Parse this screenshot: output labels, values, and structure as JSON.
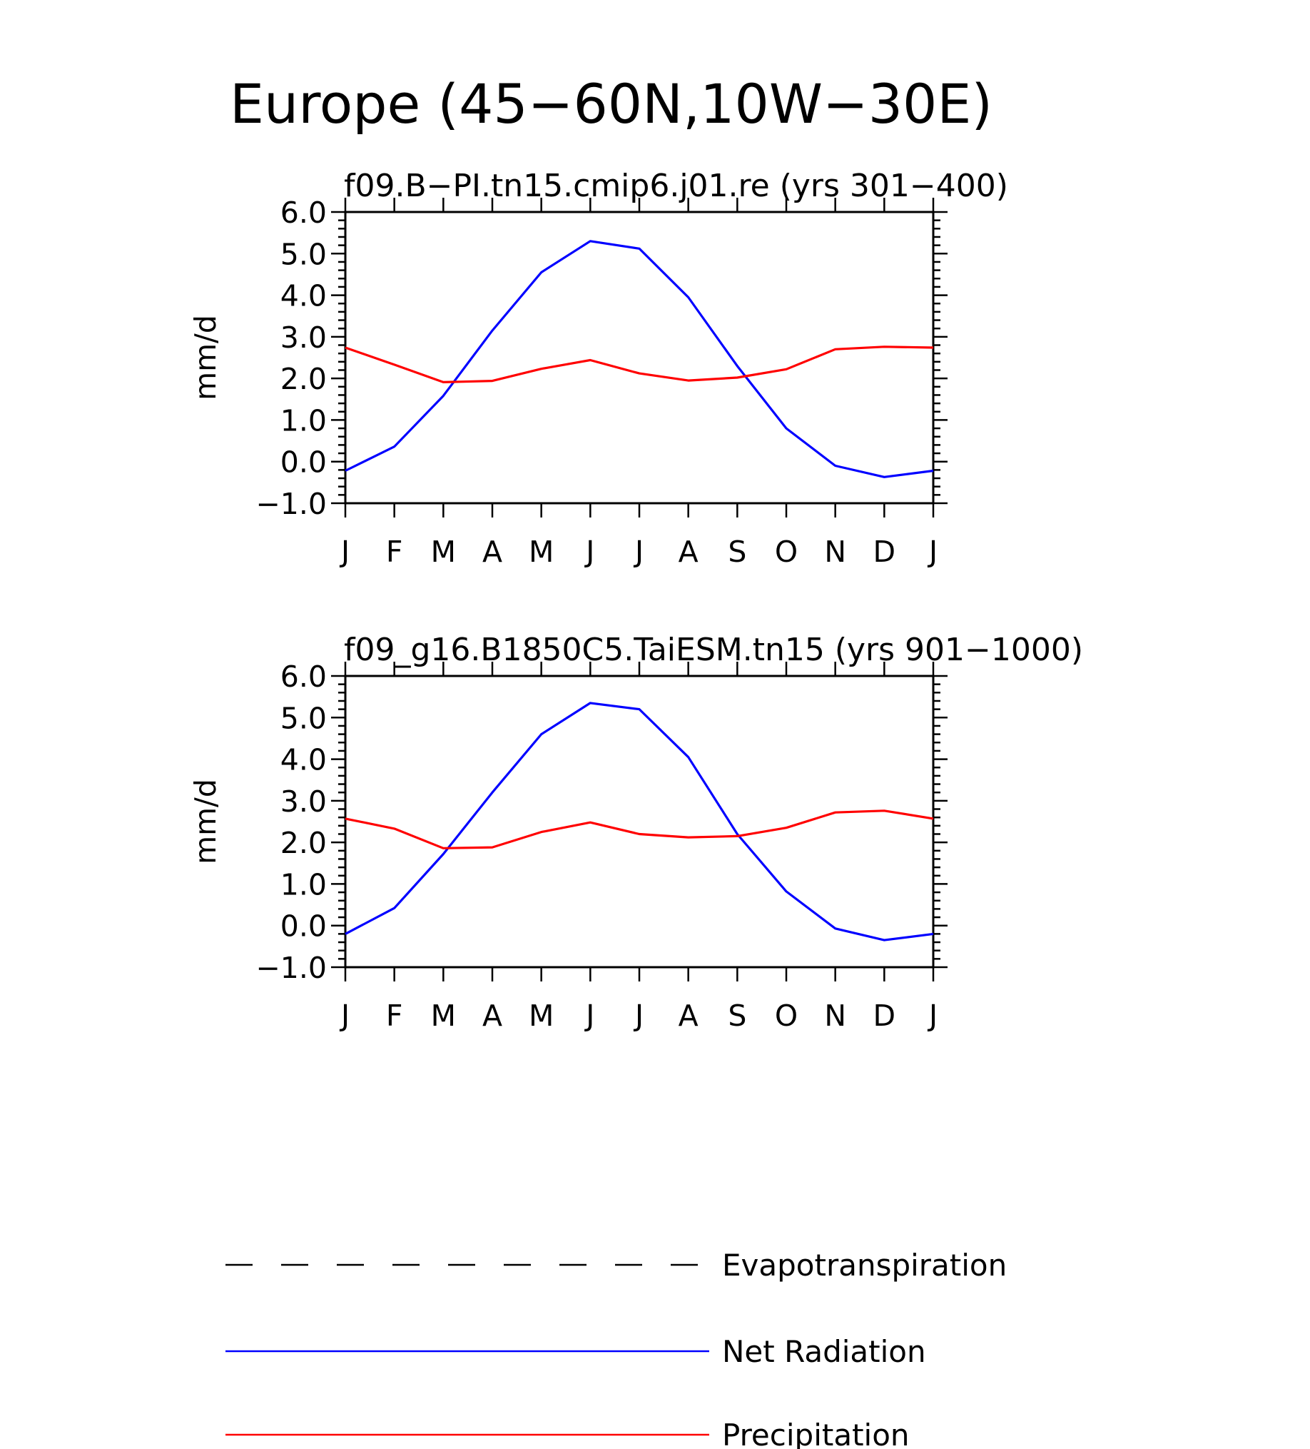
{
  "figure": {
    "title": "Europe (45−60N,10W−30E)"
  },
  "chart_data": [
    {
      "type": "line",
      "title": "f09.B−PI.tn15.cmip6.j01.re (yrs 301−400)",
      "ylabel": "mm/d",
      "xlabel": "",
      "categories": [
        "J",
        "F",
        "M",
        "A",
        "M",
        "J",
        "J",
        "A",
        "S",
        "O",
        "N",
        "D",
        "J"
      ],
      "ylim": [
        -1.0,
        6.0
      ],
      "yticks": [
        "−1.0",
        "0.0",
        "1.0",
        "2.0",
        "3.0",
        "4.0",
        "5.0",
        "6.0"
      ],
      "grid": false,
      "series": [
        {
          "name": "Net Radiation",
          "color": "#0000ff",
          "values": [
            -0.22,
            0.36,
            1.58,
            3.15,
            4.55,
            5.3,
            5.12,
            3.95,
            2.3,
            0.8,
            -0.1,
            -0.37,
            -0.22
          ]
        },
        {
          "name": "Precipitation",
          "color": "#ff0000",
          "values": [
            2.74,
            2.33,
            1.91,
            1.94,
            2.23,
            2.44,
            2.12,
            1.95,
            2.02,
            2.22,
            2.7,
            2.76,
            2.74
          ]
        }
      ]
    },
    {
      "type": "line",
      "title": "f09_g16.B1850C5.TaiESM.tn15 (yrs 901−1000)",
      "ylabel": "mm/d",
      "xlabel": "",
      "categories": [
        "J",
        "F",
        "M",
        "A",
        "M",
        "J",
        "J",
        "A",
        "S",
        "O",
        "N",
        "D",
        "J"
      ],
      "ylim": [
        -1.0,
        6.0
      ],
      "yticks": [
        "−1.0",
        "0.0",
        "1.0",
        "2.0",
        "3.0",
        "4.0",
        "5.0",
        "6.0"
      ],
      "grid": false,
      "series": [
        {
          "name": "Net Radiation",
          "color": "#0000ff",
          "values": [
            -0.2,
            0.42,
            1.72,
            3.2,
            4.6,
            5.35,
            5.2,
            4.05,
            2.2,
            0.82,
            -0.07,
            -0.35,
            -0.2
          ]
        },
        {
          "name": "Precipitation",
          "color": "#ff0000",
          "values": [
            2.57,
            2.33,
            1.86,
            1.88,
            2.25,
            2.48,
            2.2,
            2.12,
            2.15,
            2.35,
            2.72,
            2.76,
            2.57
          ]
        }
      ]
    }
  ],
  "legend": {
    "placement": "bottom",
    "entries": [
      {
        "label": "Evapotranspiration",
        "color": "#000000",
        "style": "dashed"
      },
      {
        "label": "Net Radiation",
        "color": "#0000ff",
        "style": "solid"
      },
      {
        "label": "Precipitation",
        "color": "#ff0000",
        "style": "solid"
      }
    ]
  }
}
